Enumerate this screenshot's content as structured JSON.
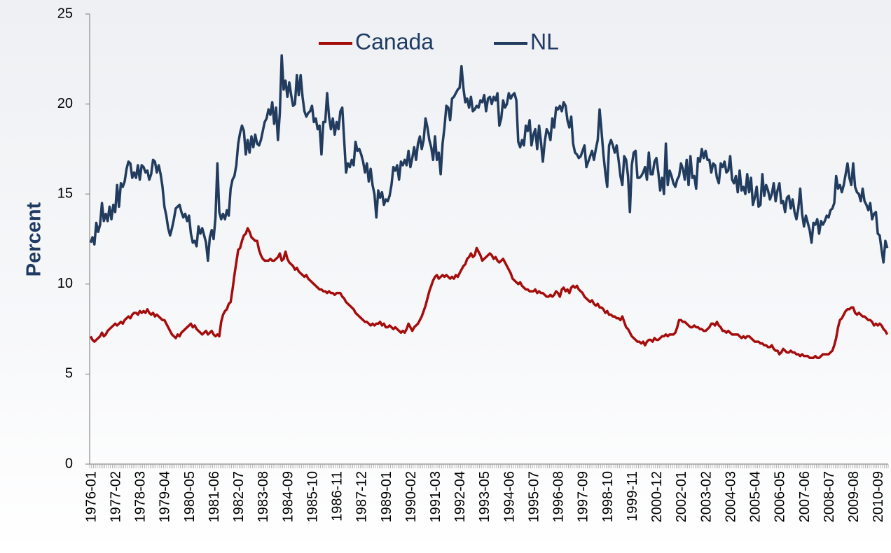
{
  "chart_data": {
    "type": "line",
    "ylabel": "Percent",
    "ylim": [
      0,
      25
    ],
    "yticks": [
      0,
      5,
      10,
      15,
      20,
      25
    ],
    "legend": "top",
    "categories": [
      "1976-01",
      null,
      null,
      null,
      null,
      null,
      null,
      null,
      null,
      null,
      null,
      null,
      null,
      "1977-02",
      null,
      null,
      null,
      null,
      null,
      null,
      null,
      null,
      null,
      null,
      null,
      null,
      "1978-03",
      null,
      null,
      null,
      null,
      null,
      null,
      null,
      null,
      null,
      null,
      null,
      null,
      "1979-04",
      null,
      null,
      null,
      null,
      null,
      null,
      null,
      null,
      null,
      null,
      null,
      null,
      "1980-05",
      null,
      null,
      null,
      null,
      null,
      null,
      null,
      null,
      null,
      null,
      null,
      null,
      "1981-06",
      null,
      null,
      null,
      null,
      null,
      null,
      null,
      null,
      null,
      null,
      null,
      null,
      "1982-07",
      null,
      null,
      null,
      null,
      null,
      null,
      null,
      null,
      null,
      null,
      null,
      null,
      "1983-08",
      null,
      null,
      null,
      null,
      null,
      null,
      null,
      null,
      null,
      null,
      null,
      null,
      "1984-09",
      null,
      null,
      null,
      null,
      null,
      null,
      null,
      null,
      null,
      null,
      null,
      null,
      "1985-10",
      null,
      null,
      null,
      null,
      null,
      null,
      null,
      null,
      null,
      null,
      null,
      null,
      "1986-11",
      null,
      null,
      null,
      null,
      null,
      null,
      null,
      null,
      null,
      null,
      null,
      null,
      "1987-12",
      null,
      null,
      null,
      null,
      null,
      null,
      null,
      null,
      null,
      null,
      null,
      null,
      "1989-01",
      null,
      null,
      null,
      null,
      null,
      null,
      null,
      null,
      null,
      null,
      null,
      null,
      "1990-02",
      null,
      null,
      null,
      null,
      null,
      null,
      null,
      null,
      null,
      null,
      null,
      null,
      "1991-03",
      null,
      null,
      null,
      null,
      null,
      null,
      null,
      null,
      null,
      null,
      null,
      null,
      "1992-04",
      null,
      null,
      null,
      null,
      null,
      null,
      null,
      null,
      null,
      null,
      null,
      null,
      "1993-05",
      null,
      null,
      null,
      null,
      null,
      null,
      null,
      null,
      null,
      null,
      null,
      null,
      "1994-06",
      null,
      null,
      null,
      null,
      null,
      null,
      null,
      null,
      null,
      null,
      null,
      null,
      "1995-07",
      null,
      null,
      null,
      null,
      null,
      null,
      null,
      null,
      null,
      null,
      null,
      null,
      "1996-08",
      null,
      null,
      null,
      null,
      null,
      null,
      null,
      null,
      null,
      null,
      null,
      null,
      "1997-09",
      null,
      null,
      null,
      null,
      null,
      null,
      null,
      null,
      null,
      null,
      null,
      null,
      "1998-10",
      null,
      null,
      null,
      null,
      null,
      null,
      null,
      null,
      null,
      null,
      null,
      null,
      "1999-11",
      null,
      null,
      null,
      null,
      null,
      null,
      null,
      null,
      null,
      null,
      null,
      null,
      "2000-12",
      null,
      null,
      null,
      null,
      null,
      null,
      null,
      null,
      null,
      null,
      null,
      null,
      "2002-01",
      null,
      null,
      null,
      null,
      null,
      null,
      null,
      null,
      null,
      null,
      null,
      null,
      "2003-02",
      null,
      null,
      null,
      null,
      null,
      null,
      null,
      null,
      null,
      null,
      null,
      null,
      "2004-03",
      null,
      null,
      null,
      null,
      null,
      null,
      null,
      null,
      null,
      null,
      null,
      null,
      "2005-04",
      null,
      null,
      null,
      null,
      null,
      null,
      null,
      null,
      null,
      null,
      null,
      null,
      "2006-05",
      null,
      null,
      null,
      null,
      null,
      null,
      null,
      null,
      null,
      null,
      null,
      null,
      "2007-06",
      null,
      null,
      null,
      null,
      null,
      null,
      null,
      null,
      null,
      null,
      null,
      null,
      "2008-07",
      null,
      null,
      null,
      null,
      null,
      null,
      null,
      null,
      null,
      null,
      null,
      null,
      "2009-08",
      null,
      null,
      null,
      null,
      null,
      null,
      null,
      null,
      null,
      null,
      null,
      null,
      "2010-09",
      null,
      null,
      null,
      null,
      null
    ],
    "series": [
      {
        "name": "Canada",
        "color": "#a50d0d",
        "values": [
          7.1,
          6.9,
          6.8,
          6.9,
          7.0,
          7.1,
          7.3,
          7.1,
          7.2,
          7.4,
          7.5,
          7.6,
          7.7,
          7.8,
          7.7,
          7.8,
          7.9,
          7.8,
          8.0,
          8.1,
          8.2,
          8.1,
          8.3,
          8.4,
          8.4,
          8.3,
          8.5,
          8.4,
          8.5,
          8.4,
          8.6,
          8.4,
          8.3,
          8.4,
          8.2,
          8.3,
          8.2,
          8.1,
          8.0,
          8.0,
          7.8,
          7.6,
          7.4,
          7.2,
          7.1,
          7.0,
          7.2,
          7.1,
          7.3,
          7.4,
          7.5,
          7.6,
          7.7,
          7.8,
          7.6,
          7.7,
          7.5,
          7.4,
          7.3,
          7.2,
          7.3,
          7.4,
          7.2,
          7.3,
          7.4,
          7.2,
          7.1,
          7.2,
          7.1,
          7.9,
          8.3,
          8.5,
          8.6,
          8.9,
          9.0,
          9.7,
          10.5,
          11.2,
          11.9,
          12.0,
          12.4,
          12.7,
          12.8,
          13.1,
          12.9,
          12.6,
          12.5,
          12.4,
          12.4,
          11.9,
          11.6,
          11.4,
          11.3,
          11.3,
          11.3,
          11.4,
          11.3,
          11.3,
          11.4,
          11.5,
          11.7,
          11.3,
          11.4,
          11.8,
          11.4,
          11.2,
          11.1,
          11.0,
          10.8,
          10.9,
          10.7,
          10.6,
          10.5,
          10.4,
          10.5,
          10.3,
          10.2,
          10.1,
          10.0,
          9.9,
          9.8,
          9.7,
          9.7,
          9.6,
          9.6,
          9.5,
          9.6,
          9.5,
          9.5,
          9.4,
          9.5,
          9.5,
          9.5,
          9.3,
          9.2,
          9.0,
          8.9,
          8.8,
          8.7,
          8.6,
          8.4,
          8.3,
          8.2,
          8.1,
          8.0,
          7.9,
          7.9,
          7.8,
          7.7,
          7.8,
          7.7,
          7.8,
          7.8,
          7.9,
          7.7,
          7.8,
          7.6,
          7.6,
          7.7,
          7.6,
          7.5,
          7.6,
          7.5,
          7.4,
          7.3,
          7.4,
          7.3,
          7.5,
          7.8,
          7.6,
          7.4,
          7.6,
          7.7,
          7.8,
          8.0,
          8.2,
          8.5,
          8.8,
          9.2,
          9.6,
          9.9,
          10.2,
          10.4,
          10.5,
          10.3,
          10.4,
          10.5,
          10.4,
          10.5,
          10.4,
          10.3,
          10.4,
          10.3,
          10.5,
          10.4,
          10.6,
          10.8,
          11.0,
          11.1,
          11.4,
          11.5,
          11.7,
          11.5,
          11.6,
          12.0,
          11.8,
          11.6,
          11.3,
          11.4,
          11.5,
          11.6,
          11.7,
          11.6,
          11.4,
          11.5,
          11.3,
          11.2,
          11.3,
          11.4,
          11.2,
          11.0,
          10.8,
          10.6,
          10.3,
          10.2,
          10.1,
          10.0,
          10.1,
          9.9,
          9.8,
          9.7,
          9.7,
          9.6,
          9.6,
          9.6,
          9.7,
          9.5,
          9.6,
          9.5,
          9.5,
          9.4,
          9.3,
          9.3,
          9.4,
          9.3,
          9.4,
          9.6,
          9.5,
          9.3,
          9.7,
          9.8,
          9.6,
          9.7,
          9.5,
          9.8,
          9.9,
          9.8,
          9.9,
          9.7,
          9.6,
          9.5,
          9.3,
          9.2,
          9.1,
          9.0,
          9.1,
          8.9,
          8.8,
          8.9,
          8.7,
          8.7,
          8.6,
          8.4,
          8.5,
          8.3,
          8.3,
          8.2,
          8.2,
          8.1,
          8.1,
          8.0,
          8.2,
          7.9,
          7.6,
          7.5,
          7.3,
          7.1,
          7.0,
          6.9,
          6.8,
          6.8,
          6.7,
          6.8,
          6.6,
          6.8,
          6.9,
          6.9,
          6.8,
          7.0,
          6.9,
          6.9,
          7.0,
          7.1,
          7.1,
          7.2,
          7.1,
          7.2,
          7.2,
          7.2,
          7.3,
          7.6,
          8.0,
          8.0,
          7.9,
          7.9,
          7.8,
          7.7,
          7.6,
          7.6,
          7.7,
          7.6,
          7.6,
          7.5,
          7.5,
          7.4,
          7.4,
          7.5,
          7.6,
          7.8,
          7.8,
          7.7,
          7.9,
          7.7,
          7.6,
          7.4,
          7.4,
          7.3,
          7.4,
          7.3,
          7.2,
          7.2,
          7.2,
          7.2,
          7.1,
          7.0,
          7.1,
          7.0,
          7.1,
          7.1,
          7.0,
          6.9,
          6.8,
          6.8,
          6.8,
          6.7,
          6.7,
          6.6,
          6.6,
          6.5,
          6.5,
          6.6,
          6.4,
          6.3,
          6.3,
          6.1,
          6.2,
          6.4,
          6.3,
          6.2,
          6.2,
          6.3,
          6.2,
          6.2,
          6.1,
          6.1,
          6.0,
          6.1,
          6.0,
          6.0,
          6.0,
          5.9,
          5.9,
          5.9,
          6.0,
          5.9,
          5.9,
          6.0,
          6.1,
          6.1,
          6.1,
          6.1,
          6.2,
          6.3,
          6.6,
          7.0,
          7.6,
          8.0,
          8.1,
          8.3,
          8.5,
          8.6,
          8.6,
          8.7,
          8.7,
          8.4,
          8.3,
          8.4,
          8.3,
          8.2,
          8.2,
          8.1,
          8.0,
          8.0,
          7.9,
          7.7,
          7.8,
          7.7,
          7.8,
          7.7,
          7.5,
          7.4,
          7.2
        ]
      },
      {
        "name": "NL",
        "color": "#213c5e",
        "values": [
          12.3,
          12.6,
          12.2,
          13.4,
          12.9,
          13.3,
          14.5,
          13.5,
          13.9,
          13.5,
          14.3,
          13.6,
          14.4,
          14.0,
          15.5,
          14.3,
          15.6,
          15.4,
          15.7,
          16.4,
          16.8,
          16.7,
          15.9,
          16.2,
          15.9,
          16.6,
          15.8,
          16.6,
          16.5,
          16.2,
          16.3,
          15.8,
          16.1,
          16.9,
          16.8,
          16.2,
          16.6,
          16.1,
          15.4,
          14.3,
          13.8,
          13.1,
          12.7,
          13.1,
          13.6,
          14.2,
          14.3,
          14.4,
          14.0,
          13.7,
          13.9,
          13.5,
          13.8,
          12.8,
          12.3,
          12.4,
          12.1,
          13.2,
          12.8,
          13.1,
          12.7,
          12.3,
          11.3,
          12.6,
          13.0,
          12.5,
          13.7,
          16.7,
          14.0,
          13.6,
          13.9,
          13.6,
          14.1,
          13.8,
          15.3,
          15.8,
          16.0,
          16.6,
          17.8,
          18.4,
          18.8,
          18.5,
          17.2,
          18.0,
          17.3,
          18.2,
          17.6,
          18.3,
          17.8,
          17.7,
          18.0,
          18.5,
          19.0,
          19.2,
          19.7,
          19.4,
          20.1,
          18.9,
          19.8,
          18.0,
          19.5,
          22.7,
          20.8,
          21.3,
          20.4,
          21.2,
          20.5,
          19.9,
          20.0,
          21.6,
          20.5,
          21.6,
          20.4,
          19.6,
          19.3,
          19.5,
          19.6,
          19.9,
          19.0,
          19.2,
          18.6,
          18.8,
          17.2,
          19.0,
          19.0,
          20.6,
          19.3,
          18.6,
          19.2,
          18.3,
          19.0,
          18.6,
          19.6,
          19.8,
          18.0,
          16.2,
          16.7,
          16.5,
          16.9,
          16.6,
          17.9,
          17.4,
          17.5,
          17.2,
          16.8,
          16.2,
          16.7,
          15.7,
          16.4,
          15.5,
          15.0,
          13.7,
          15.2,
          14.8,
          15.1,
          14.4,
          14.7,
          14.6,
          14.9,
          15.5,
          16.5,
          16.3,
          16.6,
          15.8,
          16.8,
          16.6,
          16.9,
          16.6,
          17.4,
          16.5,
          17.0,
          17.6,
          16.9,
          17.8,
          18.2,
          17.5,
          18.0,
          19.2,
          18.7,
          18.0,
          17.6,
          16.9,
          18.2,
          16.9,
          17.3,
          16.1,
          17.8,
          18.7,
          19.9,
          19.8,
          19.1,
          20.3,
          20.4,
          20.6,
          20.8,
          20.9,
          22.1,
          20.9,
          20.1,
          20.3,
          19.8,
          20.4,
          19.6,
          19.7,
          19.9,
          19.8,
          20.2,
          20.1,
          20.5,
          19.6,
          20.3,
          20.4,
          20.0,
          20.4,
          20.2,
          20.6,
          18.8,
          19.2,
          20.2,
          19.8,
          20.0,
          20.6,
          20.3,
          20.5,
          20.6,
          20.2,
          17.9,
          17.6,
          18.0,
          17.7,
          18.8,
          18.5,
          19.1,
          17.7,
          18.3,
          18.6,
          17.5,
          18.8,
          17.9,
          16.8,
          17.9,
          18.6,
          18.4,
          18.0,
          19.2,
          18.7,
          19.8,
          19.7,
          19.9,
          19.6,
          20.1,
          19.9,
          19.1,
          18.7,
          19.3,
          17.8,
          17.3,
          17.2,
          17.0,
          17.1,
          17.4,
          17.7,
          16.5,
          16.8,
          17.1,
          17.4,
          16.9,
          17.5,
          18.0,
          19.7,
          18.5,
          17.2,
          16.2,
          15.4,
          17.7,
          18.0,
          17.7,
          17.3,
          17.7,
          16.9,
          16.0,
          15.5,
          17.1,
          16.9,
          16.0,
          14.0,
          16.6,
          17.3,
          17.4,
          15.9,
          15.9,
          16.0,
          16.2,
          16.5,
          15.8,
          17.3,
          16.1,
          16.1,
          16.8,
          17.0,
          16.2,
          15.2,
          15.9,
          15.0,
          17.8,
          15.5,
          16.3,
          16.0,
          15.6,
          15.4,
          15.8,
          16.0,
          16.7,
          16.4,
          15.8,
          16.9,
          15.5,
          17.1,
          15.9,
          16.0,
          15.3,
          17.0,
          16.8,
          17.5,
          17.0,
          17.4,
          16.9,
          16.9,
          16.2,
          16.7,
          16.6,
          15.9,
          15.6,
          16.7,
          16.5,
          16.8,
          16.2,
          16.3,
          17.1,
          15.8,
          15.6,
          16.0,
          15.1,
          16.3,
          15.2,
          15.4,
          15.0,
          16.1,
          15.1,
          15.9,
          14.4,
          14.8,
          15.4,
          14.3,
          14.4,
          16.1,
          14.9,
          15.5,
          15.2,
          14.7,
          15.0,
          15.6,
          14.6,
          15.2,
          15.6,
          14.5,
          14.6,
          14.0,
          14.8,
          14.9,
          14.2,
          14.7,
          14.0,
          13.6,
          14.2,
          15.3,
          13.9,
          13.2,
          13.8,
          13.4,
          13.0,
          12.3,
          13.4,
          13.3,
          13.6,
          12.8,
          13.5,
          13.3,
          13.5,
          13.8,
          13.7,
          14.1,
          14.2,
          14.5,
          16.0,
          15.3,
          15.5,
          15.1,
          15.5,
          16.1,
          16.7,
          15.9,
          15.5,
          16.7,
          15.4,
          15.1,
          15.0,
          14.6,
          15.3,
          14.6,
          14.4,
          14.1,
          14.5,
          13.6,
          13.9,
          14.0,
          12.8,
          12.7,
          11.9,
          11.2,
          12.4,
          12.0
        ]
      }
    ]
  }
}
